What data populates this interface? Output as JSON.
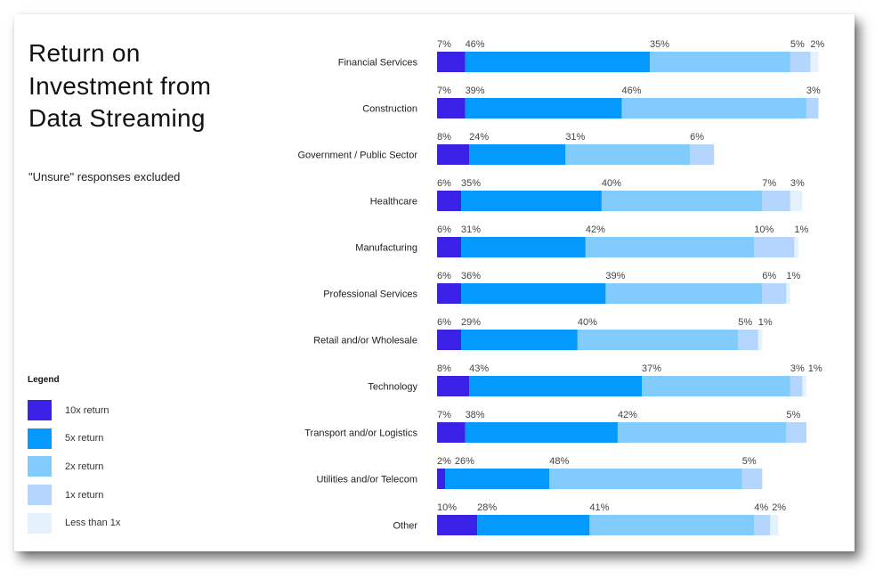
{
  "title_lines": [
    "Return on",
    "Investment from",
    "Data Streaming"
  ],
  "subtitle": "\"Unsure\" responses excluded",
  "legend": {
    "title": "Legend",
    "items": [
      {
        "label": "10x return",
        "color": "#3b20e8"
      },
      {
        "label": "5x return",
        "color": "#0399fd"
      },
      {
        "label": "2x return",
        "color": "#82cbfd"
      },
      {
        "label": "1x return",
        "color": "#b3d5fe"
      },
      {
        "label": "Less than 1x",
        "color": "#e6f1fe"
      }
    ]
  },
  "chart_data": {
    "type": "bar",
    "orientation": "horizontal",
    "stacked": true,
    "title": "Return on Investment from Data Streaming",
    "subtitle": "\"Unsure\" responses excluded",
    "xlabel": "",
    "ylabel": "",
    "xlim": [
      0,
      100
    ],
    "grid": false,
    "legend_position": "bottom-left",
    "value_suffix": "%",
    "categories": [
      "Financial Services",
      "Construction",
      "Government / Public Sector",
      "Healthcare",
      "Manufacturing",
      "Professional Services",
      "Retail and/or Wholesale",
      "Technology",
      "Transport and/or Logistics",
      "Utilities and/or Telecom",
      "Other"
    ],
    "series": [
      {
        "name": "10x return",
        "color": "#3b20e8",
        "values": [
          7,
          7,
          8,
          6,
          6,
          6,
          6,
          8,
          7,
          2,
          10
        ]
      },
      {
        "name": "5x return",
        "color": "#0399fd",
        "values": [
          46,
          39,
          24,
          35,
          31,
          36,
          29,
          43,
          38,
          26,
          28
        ]
      },
      {
        "name": "2x return",
        "color": "#82cbfd",
        "values": [
          35,
          46,
          31,
          40,
          42,
          39,
          40,
          37,
          42,
          48,
          41
        ]
      },
      {
        "name": "1x return",
        "color": "#b3d5fe",
        "values": [
          5,
          3,
          6,
          7,
          10,
          6,
          5,
          3,
          5,
          5,
          4
        ]
      },
      {
        "name": "Less than 1x",
        "color": "#e6f1fe",
        "values": [
          2,
          0,
          0,
          3,
          1,
          1,
          1,
          1,
          0,
          0,
          2
        ]
      }
    ]
  }
}
